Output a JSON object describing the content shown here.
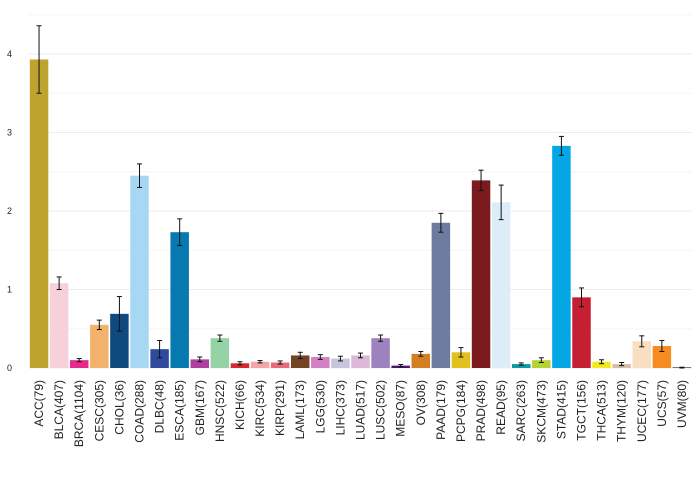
{
  "chart_data": {
    "type": "bar",
    "title": "",
    "xlabel": "",
    "ylabel": "",
    "ylim": [
      0,
      4.5
    ],
    "yticks": [
      0,
      1,
      2,
      3,
      4
    ],
    "grid": true,
    "legend": "none",
    "categories": [
      "ACC(79)",
      "BLCA(407)",
      "BRCA(1104)",
      "CESC(305)",
      "CHOL(36)",
      "COAD(288)",
      "DLBC(48)",
      "ESCA(185)",
      "GBM(167)",
      "HNSC(522)",
      "KICH(66)",
      "KIRC(534)",
      "KIRP(291)",
      "LAML(173)",
      "LGG(530)",
      "LIHC(373)",
      "LUAD(517)",
      "LUSC(502)",
      "MESO(87)",
      "OV(308)",
      "PAAD(179)",
      "PCPG(184)",
      "PRAD(498)",
      "READ(95)",
      "SARC(263)",
      "SKCM(473)",
      "STAD(415)",
      "TGCT(156)",
      "THCA(513)",
      "THYM(120)",
      "UCEC(177)",
      "UCS(57)",
      "UVM(80)"
    ],
    "values": [
      3.93,
      1.08,
      0.1,
      0.55,
      0.69,
      2.45,
      0.24,
      1.73,
      0.11,
      0.38,
      0.06,
      0.08,
      0.07,
      0.16,
      0.14,
      0.12,
      0.16,
      0.38,
      0.03,
      0.18,
      1.85,
      0.2,
      2.39,
      2.11,
      0.05,
      0.1,
      2.83,
      0.9,
      0.08,
      0.05,
      0.34,
      0.28,
      0.0
    ],
    "errors": [
      0.43,
      0.08,
      0.02,
      0.06,
      0.22,
      0.15,
      0.11,
      0.17,
      0.03,
      0.04,
      0.02,
      0.015,
      0.02,
      0.04,
      0.03,
      0.03,
      0.03,
      0.04,
      0.015,
      0.03,
      0.12,
      0.06,
      0.13,
      0.22,
      0.015,
      0.03,
      0.12,
      0.12,
      0.025,
      0.02,
      0.07,
      0.07,
      0.01
    ],
    "colors": [
      "#bfa32f",
      "#f8d0da",
      "#e7298a",
      "#f3b26c",
      "#0f4a7e",
      "#a6d8f4",
      "#2f4a9c",
      "#0579b0",
      "#b040a0",
      "#95d3a6",
      "#d7282d",
      "#f4a6a6",
      "#e66a79",
      "#744326",
      "#d480c3",
      "#c5c5de",
      "#dbb8d8",
      "#9c83bf",
      "#4a1873",
      "#d47d22",
      "#6e7ba1",
      "#e2c11f",
      "#7b1b20",
      "#dcedf8",
      "#0b9c9f",
      "#b5d334",
      "#04a7e4",
      "#c61f32",
      "#f4ea1b",
      "#d6bfa8",
      "#f7dfc0",
      "#f68c1f",
      "#222222"
    ]
  }
}
